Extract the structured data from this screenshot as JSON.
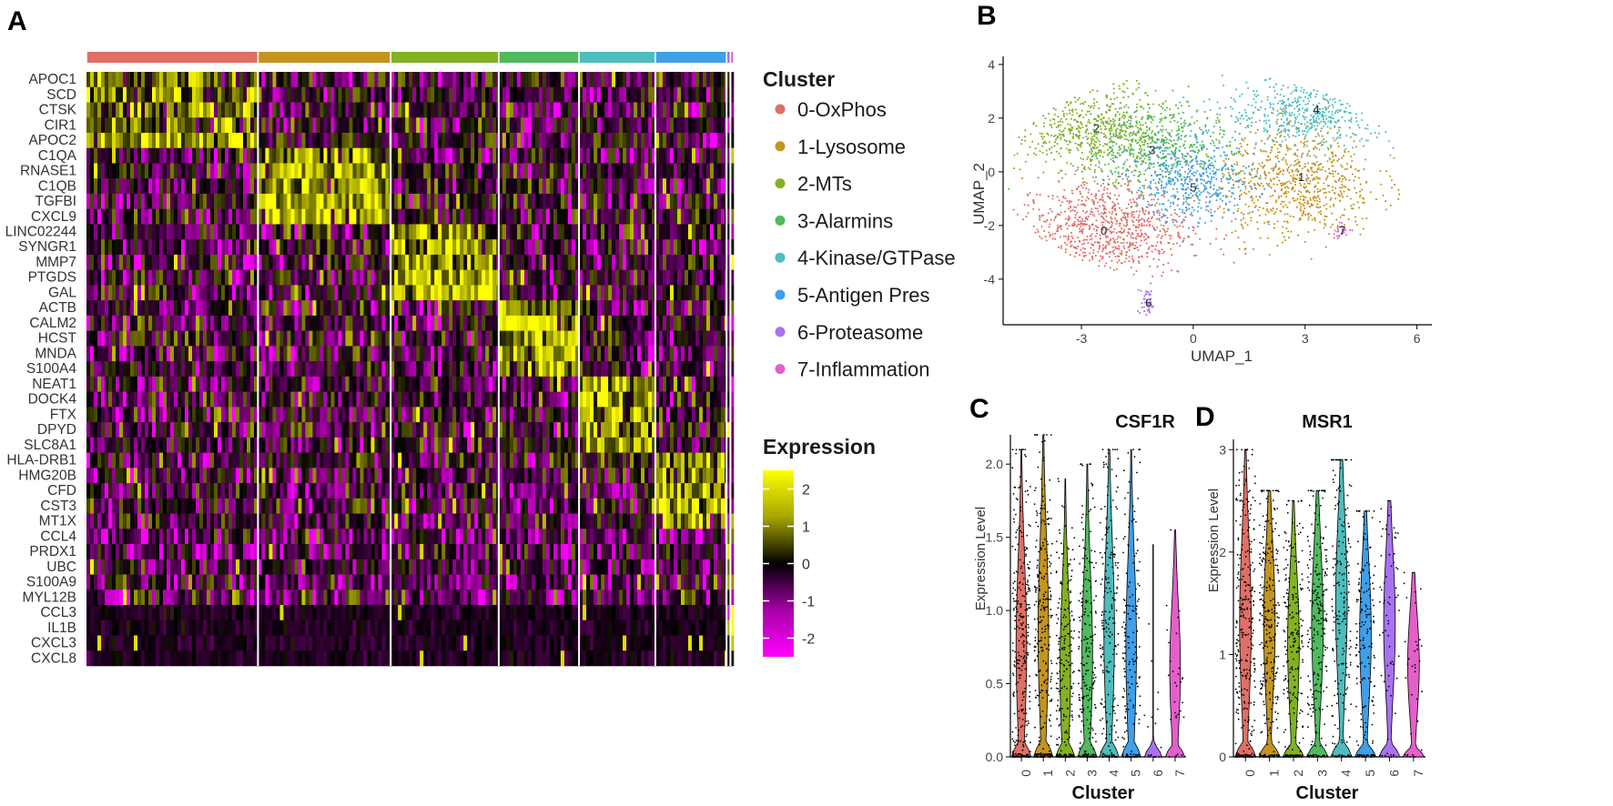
{
  "panels": {
    "a": "A",
    "b": "B",
    "c": "C",
    "d": "D"
  },
  "colors": {
    "clusters": [
      "#e06f66",
      "#c3951e",
      "#82b222",
      "#4fba5e",
      "#4dbdbd",
      "#3f9fe8",
      "#a872f2",
      "#e45fcb"
    ],
    "expression_low": "#ff00ff",
    "expression_mid": "#000000",
    "expression_high": "#ffff00"
  },
  "chart_data": [
    {
      "type": "heatmap",
      "panel": "A",
      "genes": [
        "APOC1",
        "SCD",
        "CTSK",
        "CIR1",
        "APOC2",
        "C1QA",
        "RNASE1",
        "C1QB",
        "TGFBI",
        "CXCL9",
        "LINC02244",
        "SYNGR1",
        "MMP7",
        "PTGDS",
        "GAL",
        "ACTB",
        "CALM2",
        "HCST",
        "MNDA",
        "S100A4",
        "NEAT1",
        "DOCK4",
        "FTX",
        "DPYD",
        "SLC8A1",
        "HLA-DRB1",
        "HMG20B",
        "CFD",
        "CST3",
        "MT1X",
        "CCL4",
        "PRDX1",
        "UBC",
        "S100A9",
        "MYL12B",
        "CCL3",
        "IL1B",
        "CXCL3",
        "CXCL8"
      ],
      "cluster_order": [
        "0",
        "1",
        "2",
        "3",
        "4",
        "5",
        "6",
        "7"
      ],
      "cluster_cell_fractions": [
        0.265,
        0.205,
        0.167,
        0.124,
        0.118,
        0.11,
        0.006,
        0.005
      ],
      "legend": {
        "title": "Cluster",
        "items": [
          "0-OxPhos",
          "1-Lysosome",
          "2-MTs",
          "3-Alarmins",
          "4-Kinase/GTPase",
          "5-Antigen Pres",
          "6-Proteasome",
          "7-Inflammation"
        ]
      },
      "colorbar": {
        "title": "Expression",
        "range": [
          -2.5,
          2.5
        ],
        "ticks": [
          2,
          1,
          0,
          -1,
          -2
        ],
        "tick_labels": [
          "2",
          "1",
          "0",
          "-1",
          "-2"
        ]
      }
    },
    {
      "type": "scatter",
      "panel": "B",
      "xlabel": "UMAP_1",
      "ylabel": "UMAP_2",
      "xlim": [
        -5.1,
        6.4
      ],
      "ylim": [
        -5.7,
        4.3
      ],
      "xticks": [
        -3,
        0,
        3,
        6
      ],
      "xtick_labels": [
        "-3",
        "0",
        "3",
        "6"
      ],
      "yticks": [
        4,
        2,
        0,
        -2,
        -4
      ],
      "ytick_labels": [
        "4",
        "2",
        "0",
        "-2",
        "-4"
      ],
      "cluster_centers": [
        {
          "label": "0",
          "x": -2.4,
          "y": -2.2
        },
        {
          "label": "1",
          "x": 2.9,
          "y": -0.2
        },
        {
          "label": "2",
          "x": -2.6,
          "y": 1.6
        },
        {
          "label": "3",
          "x": -1.1,
          "y": 0.8
        },
        {
          "label": "4",
          "x": 3.3,
          "y": 2.3
        },
        {
          "label": "5",
          "x": 0.0,
          "y": -0.6
        },
        {
          "label": "6",
          "x": -1.2,
          "y": -4.9
        },
        {
          "label": "7",
          "x": 4.0,
          "y": -2.2
        }
      ],
      "cluster_labels": [
        "0",
        "1",
        "2",
        "3",
        "4",
        "5",
        "6",
        "7"
      ]
    },
    {
      "type": "violin",
      "panel": "C",
      "title": "CSF1R",
      "xlabel": "Cluster",
      "ylabel": "Expression Level",
      "categories": [
        "0",
        "1",
        "2",
        "3",
        "4",
        "5",
        "6",
        "7"
      ],
      "ylim": [
        0,
        2.2
      ],
      "yticks": [
        0.0,
        0.5,
        1.0,
        1.5,
        2.0
      ],
      "ytick_labels": [
        "0.0",
        "0.5",
        "1.0",
        "1.5",
        "2.0"
      ],
      "max_values": [
        2.1,
        2.2,
        1.9,
        2.0,
        2.1,
        2.1,
        1.45,
        1.55
      ],
      "modes": [
        0.75,
        0.85,
        0.6,
        0.7,
        0.85,
        0.75,
        0.0,
        0.6
      ]
    },
    {
      "type": "violin",
      "panel": "D",
      "title": "MSR1",
      "xlabel": "Cluster",
      "ylabel": "Expression Level",
      "categories": [
        "0",
        "1",
        "2",
        "3",
        "4",
        "5",
        "6",
        "7"
      ],
      "ylim": [
        0,
        3.1
      ],
      "yticks": [
        0,
        1,
        2,
        3
      ],
      "ytick_labels": [
        "0",
        "1",
        "2",
        "3"
      ],
      "max_values": [
        3.0,
        2.6,
        2.5,
        2.6,
        2.9,
        2.4,
        2.5,
        1.8
      ],
      "modes": [
        1.3,
        1.3,
        1.1,
        1.3,
        1.5,
        1.2,
        1.3,
        0.9
      ]
    }
  ]
}
